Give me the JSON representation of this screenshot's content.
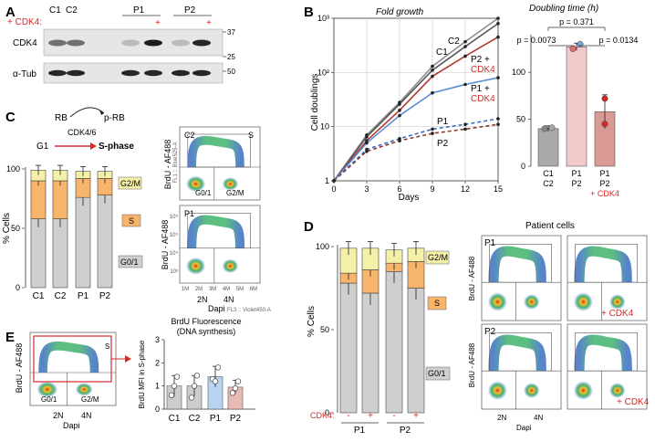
{
  "panels": {
    "a": "A",
    "b": "B",
    "c": "C",
    "d": "D",
    "e": "E"
  },
  "colors": {
    "red": "#d42a2a",
    "g1": "#cfcfcf",
    "s": "#f7b46b",
    "g2m": "#f5f0a8",
    "c_bar": "#a9a9a9",
    "p_bar": "#f2c9c9",
    "p_cdk4_bar": "#d99a94",
    "line_c2": "#8c8c8c",
    "line_c1": "#555555",
    "line_p2cdk4": "#b03a2e",
    "line_p1cdk4": "#5b8ed6",
    "line_p1": "#3b6fc1",
    "line_p2": "#8b3a2b",
    "e_c": "#cccccc",
    "e_p1": "#b8d4f0",
    "e_p2": "#e9b9b5"
  },
  "blot": {
    "cdk4_label": "+ CDK4:",
    "lane_labels": [
      "C1",
      "C2",
      "P1",
      "P2"
    ],
    "plus_marks": [
      "+",
      "+"
    ],
    "rows": [
      "CDK4",
      "α-Tub"
    ],
    "mw": [
      "37",
      "25",
      "50"
    ],
    "band_intensity": {
      "CDK4": [
        0.55,
        0.55,
        0.2,
        0.95,
        0.2,
        0.9
      ],
      "Tub": [
        0.9,
        0.9,
        0.9,
        0.9,
        0.9,
        0.9
      ]
    }
  },
  "fold_growth": {
    "title": "Fold growth",
    "ylabel": "Cell doublings",
    "xlabel": "Days",
    "xticks": [
      "0",
      "3",
      "6",
      "9",
      "12",
      "15"
    ],
    "yticks": [
      "1",
      "10",
      "10²",
      "10³"
    ],
    "labels": {
      "c2": "C2",
      "c1": "C1",
      "p2cdk4_a": "P2 +",
      "p2cdk4_b": "CDK4",
      "p1cdk4_a": "P1 +",
      "p1cdk4_b": "CDK4",
      "p1": "P1",
      "p2": "P2"
    }
  },
  "doubling": {
    "title": "Doubling time (h)",
    "yticks": [
      "0",
      "50",
      "100"
    ],
    "pvals": [
      "p = 0.371",
      "p = 0.0073",
      "p = 0.0134"
    ],
    "cats": [
      "C1",
      "P1",
      "P1"
    ],
    "cats2": [
      "C2",
      "P2",
      "P2"
    ],
    "cdk4": "+ CDK4"
  },
  "rb": {
    "rb": "RB",
    "prb": "p-RB",
    "cdk46": "CDK4/6",
    "g1": "G1",
    "sphase": "S-phase"
  },
  "stack_c": {
    "yticks": [
      "0",
      "50",
      "100"
    ],
    "ylabel": "% Cells",
    "cats": [
      "C1",
      "C2",
      "P1",
      "P2"
    ],
    "legend": [
      "G2/M",
      "S",
      "G0/1"
    ]
  },
  "flow_c": {
    "ylabel": "BrdU - AF488",
    "top_sub": "FL1 :: Blue525-A",
    "bottom_xlab": "Dapi",
    "bottom_sub": "FL3 :: Violet450-A",
    "c2": "C2",
    "p1": "P1",
    "s": "S",
    "g01": "G0/1",
    "g2m": "G2/M",
    "xticks": [
      "1M",
      "2M",
      "3M",
      "4M",
      "5M",
      "6M"
    ],
    "yticks": [
      "10⁶",
      "10⁵",
      "10⁴",
      "10³"
    ],
    "n2": "2N",
    "n4": "4N"
  },
  "stack_d": {
    "ylabel": "% Cells",
    "yticks": [
      "0",
      "50",
      "100"
    ],
    "cdk4": "CDK4:",
    "signs": [
      "-",
      "+",
      "-",
      "+"
    ],
    "groups": [
      "P1",
      "P2"
    ],
    "legend": [
      "G2/M",
      "S",
      "G0/1"
    ]
  },
  "patient": {
    "title": "Patient cells",
    "ylabel": "BrdU - AF488",
    "p1": "P1",
    "p2": "P2",
    "cdk4": "+ CDK4",
    "n2": "2N",
    "n4": "4N",
    "dapi": "Dapi"
  },
  "panel_e": {
    "ylabel": "BrdU - AF488",
    "s": "S",
    "g01": "G0/1",
    "g2m": "G2/M",
    "n2": "2N",
    "n4": "4N",
    "dapi": "Dapi",
    "title1": "BrdU Fluorescence",
    "title2": "(DNA synthesis)",
    "bar_ylabel": "BrdU MFI in S-phase",
    "yticks": [
      "0",
      "1",
      "2",
      "3"
    ],
    "cats": [
      "C1",
      "C2",
      "P1",
      "P2"
    ]
  },
  "chart_data": [
    {
      "type": "line",
      "title": "Fold growth",
      "xlabel": "Days",
      "ylabel": "Cell doublings",
      "yscale": "log",
      "x": [
        0,
        3,
        6,
        9,
        12,
        15
      ],
      "ylim": [
        1,
        1000
      ],
      "series": [
        {
          "name": "C2",
          "values": [
            1,
            7,
            28,
            130,
            370,
            1000
          ]
        },
        {
          "name": "C1",
          "values": [
            1,
            6.5,
            26,
            110,
            300,
            800
          ]
        },
        {
          "name": "P2 + CDK4",
          "values": [
            1,
            5.5,
            20,
            85,
            200,
            450
          ]
        },
        {
          "name": "P1 + CDK4",
          "values": [
            1,
            5,
            16,
            42,
            60,
            80
          ]
        },
        {
          "name": "P1",
          "values": [
            1,
            3.8,
            6,
            9,
            11,
            14
          ]
        },
        {
          "name": "P2",
          "values": [
            1,
            3.5,
            5.5,
            7.5,
            9,
            11
          ]
        }
      ]
    },
    {
      "type": "bar",
      "title": "Doubling time (h)",
      "categories": [
        "C1 C2",
        "P1 P2",
        "P1 P2 + CDK4"
      ],
      "values": [
        40,
        127,
        58
      ],
      "ylim": [
        0,
        140
      ]
    },
    {
      "type": "bar",
      "ylabel": "% Cells",
      "categories": [
        "C1",
        "C2",
        "P1",
        "P2"
      ],
      "series": [
        {
          "name": "G0/1",
          "values": [
            58,
            58,
            76,
            78
          ]
        },
        {
          "name": "S",
          "values": [
            32,
            32,
            16,
            14
          ]
        },
        {
          "name": "G2/M",
          "values": [
            9,
            9,
            6,
            6
          ]
        }
      ],
      "ylim": [
        0,
        100
      ]
    },
    {
      "type": "bar",
      "ylabel": "% Cells",
      "categories": [
        "P1 -",
        "P1 +",
        "P2 -",
        "P2 +"
      ],
      "series": [
        {
          "name": "G0/1",
          "values": [
            78,
            72,
            85,
            75
          ]
        },
        {
          "name": "S",
          "values": [
            6,
            14,
            5,
            16
          ]
        },
        {
          "name": "G2/M",
          "values": [
            15,
            13,
            8,
            8
          ]
        }
      ],
      "ylim": [
        0,
        100
      ]
    },
    {
      "type": "bar",
      "title": "BrdU Fluorescence (DNA synthesis)",
      "ylabel": "BrdU MFI in S-phase",
      "categories": [
        "C1",
        "C2",
        "P1",
        "P2"
      ],
      "values": [
        1.0,
        1.0,
        1.4,
        0.95
      ],
      "ylim": [
        0,
        3
      ]
    }
  ]
}
